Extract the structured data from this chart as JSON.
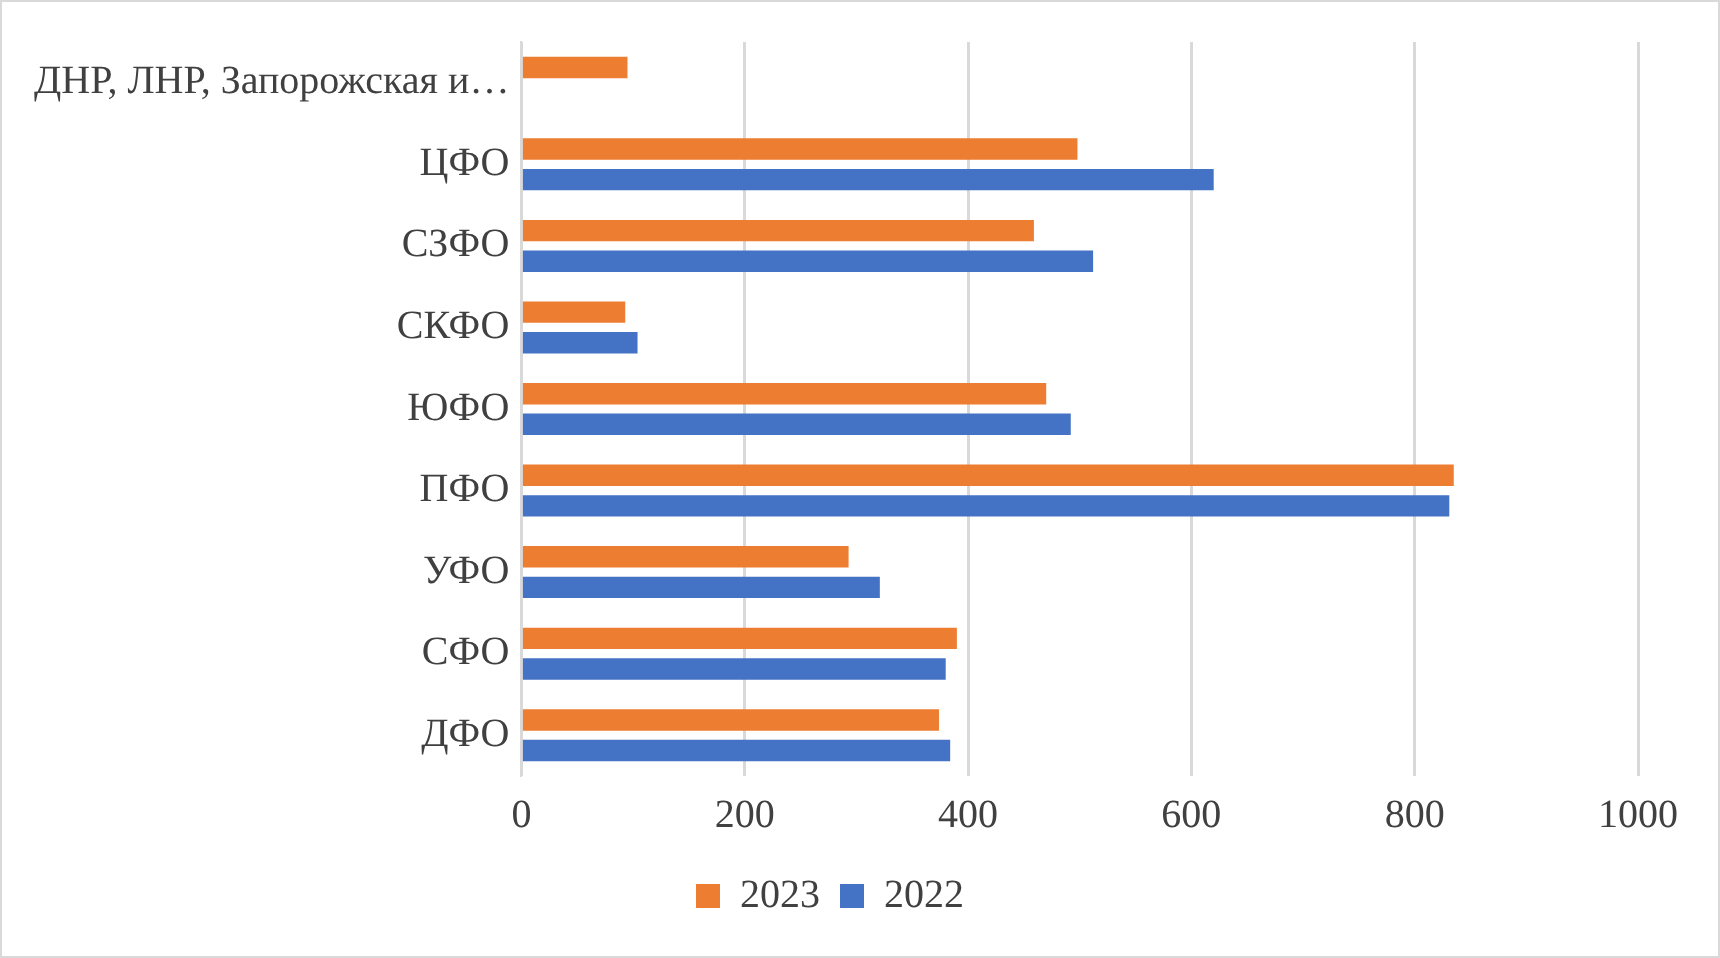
{
  "chart_data": {
    "type": "bar",
    "orientation": "horizontal",
    "categories": [
      "ДНР, ЛНР, Запорожская и…",
      "ЦФО",
      "СЗФО",
      "СКФО",
      "ЮФО",
      "ПФО",
      "УФО",
      "СФО",
      "ДФО"
    ],
    "series": [
      {
        "name": "2023",
        "color": "#ed7d31",
        "values": [
          95,
          498,
          459,
          93,
          470,
          835,
          293,
          390,
          374
        ]
      },
      {
        "name": "2022",
        "color": "#4472c4",
        "values": [
          null,
          620,
          512,
          104,
          492,
          831,
          321,
          380,
          384
        ]
      }
    ],
    "xlim": [
      0,
      1000
    ],
    "xticks": [
      0,
      200,
      400,
      600,
      800,
      1000
    ],
    "grid": "x",
    "legend": "bottom"
  }
}
